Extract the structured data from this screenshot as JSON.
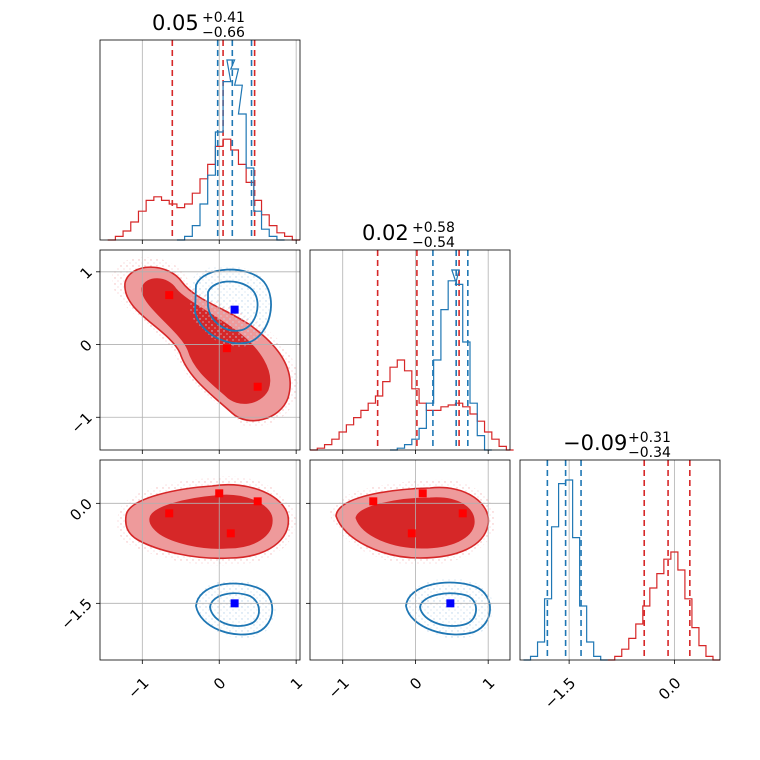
{
  "colors": {
    "red": "#d62728",
    "blue": "#1f77b4",
    "red_fill_outer": "#ee9a9b",
    "red_fill_inner": "#d62728",
    "marker_red": "#ff0000",
    "marker_blue": "#0000ff"
  },
  "chart_data": {
    "type": "corner",
    "parameters": 3,
    "panels": [
      {
        "id": "hist-1",
        "row": 0,
        "col": 0,
        "type": "histogram",
        "title": {
          "main": "0.05",
          "plus": "+0.41",
          "minus": "−0.66"
        },
        "xlim": [
          -1.55,
          1.05
        ],
        "xticks": [
          -1,
          0,
          1
        ],
        "quantiles": {
          "red": [
            -0.61,
            0.05,
            0.46
          ],
          "blue": [
            -0.02,
            0.17,
            0.42
          ]
        },
        "series": [
          {
            "name": "",
            "color": "red",
            "x": [
              -1.4,
              -1.3,
              -1.2,
              -1.1,
              -1.0,
              -0.9,
              -0.8,
              -0.7,
              -0.6,
              -0.5,
              -0.4,
              -0.3,
              -0.2,
              -0.1,
              0.0,
              0.1,
              0.2,
              0.3,
              0.4,
              0.5,
              0.6,
              0.7,
              0.8,
              0.9,
              1.0
            ],
            "y": [
              0.0,
              0.02,
              0.05,
              0.1,
              0.16,
              0.22,
              0.24,
              0.22,
              0.2,
              0.18,
              0.2,
              0.26,
              0.34,
              0.42,
              0.52,
              0.56,
              0.5,
              0.42,
              0.32,
              0.22,
              0.14,
              0.08,
              0.04,
              0.02,
              0.0
            ]
          },
          {
            "name": "",
            "color": "blue",
            "x": [
              -0.5,
              -0.4,
              -0.3,
              -0.2,
              -0.1,
              0.0,
              0.1,
              0.15,
              0.2,
              0.25,
              0.3,
              0.4,
              0.5,
              0.6,
              0.7,
              0.8
            ],
            "y": [
              0.0,
              0.02,
              0.08,
              0.2,
              0.36,
              0.6,
              0.88,
              1.0,
              0.95,
              0.86,
              0.7,
              0.4,
              0.16,
              0.06,
              0.02,
              0.0
            ]
          }
        ]
      },
      {
        "id": "hist-2",
        "row": 1,
        "col": 1,
        "type": "histogram",
        "title": {
          "main": "0.02",
          "plus": "+0.58",
          "minus": "−0.54"
        },
        "xlim": [
          -1.45,
          1.3
        ],
        "xticks": [
          -1,
          0,
          1
        ],
        "quantiles": {
          "red": [
            -0.52,
            0.02,
            0.6
          ],
          "blue": [
            0.24,
            0.56,
            0.72
          ]
        },
        "series": [
          {
            "name": "",
            "color": "red",
            "x": [
              -1.4,
              -1.3,
              -1.2,
              -1.1,
              -1.0,
              -0.9,
              -0.8,
              -0.7,
              -0.6,
              -0.5,
              -0.4,
              -0.3,
              -0.2,
              -0.1,
              0.0,
              0.1,
              0.2,
              0.3,
              0.4,
              0.5,
              0.6,
              0.7,
              0.8,
              0.9,
              1.0,
              1.1,
              1.2,
              1.3
            ],
            "y": [
              0.0,
              0.01,
              0.03,
              0.06,
              0.1,
              0.14,
              0.18,
              0.22,
              0.26,
              0.3,
              0.38,
              0.46,
              0.5,
              0.44,
              0.34,
              0.26,
              0.22,
              0.22,
              0.24,
              0.25,
              0.26,
              0.24,
              0.2,
              0.16,
              0.1,
              0.06,
              0.02,
              0.0
            ]
          },
          {
            "name": "",
            "color": "blue",
            "x": [
              -0.3,
              -0.2,
              -0.1,
              0.0,
              0.1,
              0.2,
              0.3,
              0.4,
              0.5,
              0.55,
              0.6,
              0.7,
              0.8,
              0.9,
              1.0
            ],
            "y": [
              0.0,
              0.01,
              0.03,
              0.06,
              0.12,
              0.26,
              0.5,
              0.78,
              0.94,
              1.0,
              0.92,
              0.6,
              0.26,
              0.08,
              0.0
            ]
          }
        ]
      },
      {
        "id": "hist-3",
        "row": 2,
        "col": 2,
        "type": "histogram",
        "title": {
          "main": "−0.09",
          "plus": "+0.31",
          "minus": "−0.34"
        },
        "xlim": [
          -2.2,
          0.65
        ],
        "xticks": [
          -1.5,
          0.0
        ],
        "xtick_labels": [
          "−1.5",
          "0.0"
        ],
        "quantiles": {
          "red": [
            -0.43,
            -0.09,
            0.22
          ],
          "blue": [
            -1.81,
            -1.55,
            -1.33
          ]
        },
        "series": [
          {
            "name": "",
            "color": "red",
            "x": [
              -0.9,
              -0.8,
              -0.7,
              -0.6,
              -0.5,
              -0.4,
              -0.3,
              -0.2,
              -0.1,
              0.0,
              0.1,
              0.2,
              0.3,
              0.4,
              0.5,
              0.6
            ],
            "y": [
              0.0,
              0.02,
              0.06,
              0.12,
              0.2,
              0.3,
              0.4,
              0.48,
              0.56,
              0.6,
              0.5,
              0.34,
              0.18,
              0.08,
              0.02,
              0.0
            ]
          },
          {
            "name": "",
            "color": "blue",
            "x": [
              -2.1,
              -2.0,
              -1.9,
              -1.8,
              -1.7,
              -1.6,
              -1.5,
              -1.4,
              -1.3,
              -1.2,
              -1.1,
              -1.0
            ],
            "y": [
              0.0,
              0.02,
              0.1,
              0.34,
              0.74,
              0.98,
              1.0,
              0.68,
              0.3,
              0.1,
              0.02,
              0.0
            ]
          }
        ]
      },
      {
        "id": "scatter-2-1",
        "row": 1,
        "col": 0,
        "type": "contour",
        "xlim": [
          -1.55,
          1.05
        ],
        "ylim": [
          -1.45,
          1.3
        ],
        "xticks": [
          -1,
          0,
          1
        ],
        "yticks": [
          -1,
          0,
          1
        ],
        "ytick_labels": [
          "−1",
          "0",
          "1"
        ],
        "markers": {
          "red": [
            [
              -0.65,
              0.68
            ],
            [
              0.1,
              -0.05
            ],
            [
              0.5,
              -0.58
            ]
          ],
          "blue": [
            [
              0.2,
              0.48
            ]
          ]
        }
      },
      {
        "id": "scatter-3-1",
        "row": 2,
        "col": 0,
        "type": "contour",
        "xlim": [
          -1.55,
          1.05
        ],
        "ylim": [
          -2.35,
          0.65
        ],
        "xticks": [
          -1,
          0,
          1
        ],
        "yticks": [
          -1.5,
          0.0
        ],
        "xtick_labels": [
          "−1",
          "0",
          "1"
        ],
        "ytick_labels": [
          "−1.5",
          "0.0"
        ],
        "markers": {
          "red": [
            [
              -0.65,
              -0.15
            ],
            [
              0.0,
              0.15
            ],
            [
              0.15,
              -0.45
            ],
            [
              0.5,
              0.03
            ]
          ],
          "blue": [
            [
              0.2,
              -1.5
            ]
          ]
        }
      },
      {
        "id": "scatter-3-2",
        "row": 2,
        "col": 1,
        "type": "contour",
        "xlim": [
          -1.45,
          1.3
        ],
        "ylim": [
          -2.35,
          0.65
        ],
        "xticks": [
          -1,
          0,
          1
        ],
        "yticks": [
          -1.5,
          0.0
        ],
        "xtick_labels": [
          "−1",
          "0",
          "1"
        ],
        "markers": {
          "red": [
            [
              -0.58,
              0.03
            ],
            [
              0.1,
              0.15
            ],
            [
              -0.05,
              -0.45
            ],
            [
              0.65,
              -0.15
            ]
          ],
          "blue": [
            [
              0.48,
              -1.5
            ]
          ]
        }
      }
    ]
  }
}
